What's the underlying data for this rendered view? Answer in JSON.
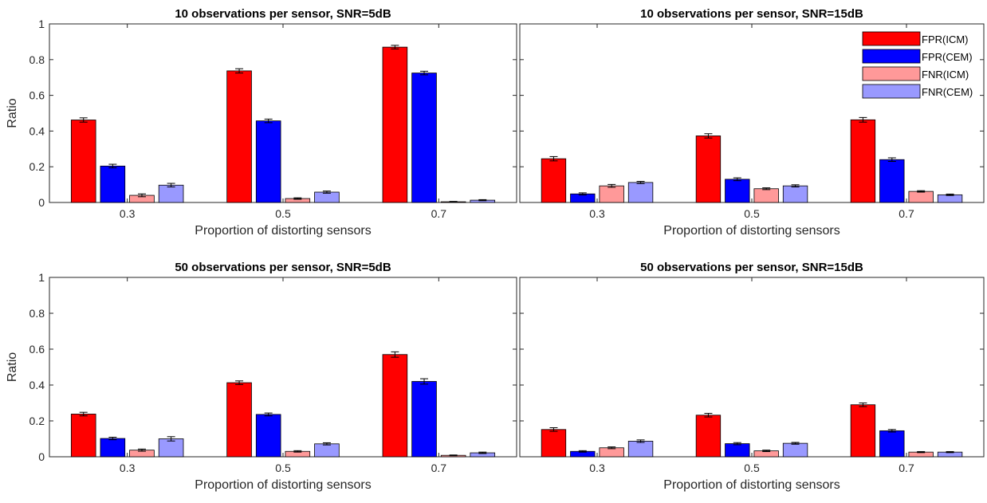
{
  "figure": {
    "colors": {
      "FPR(ICM)": "#ff0000",
      "FPR(CEM)": "#0000ff",
      "FNR(ICM)": "#ff9999",
      "FNR(CEM)": "#9999ff"
    }
  },
  "chart_data": [
    {
      "type": "bar",
      "title": "10 observations per sensor, SNR=5dB",
      "xlabel": "Proportion of distorting sensors",
      "ylabel": "Ratio",
      "ylim": [
        0,
        1
      ],
      "yticks": [
        "0",
        "0.2",
        "0.4",
        "0.6",
        "0.8",
        "1"
      ],
      "categories": [
        "0.3",
        "0.5",
        "0.7"
      ],
      "series": [
        {
          "name": "FPR(ICM)",
          "values": [
            0.462,
            0.737,
            0.87
          ],
          "errors": [
            0.012,
            0.012,
            0.01
          ]
        },
        {
          "name": "FPR(CEM)",
          "values": [
            0.204,
            0.457,
            0.725
          ],
          "errors": [
            0.01,
            0.01,
            0.01
          ]
        },
        {
          "name": "FNR(ICM)",
          "values": [
            0.04,
            0.022,
            0.004
          ],
          "errors": [
            0.008,
            0.004,
            0.002
          ]
        },
        {
          "name": "FNR(CEM)",
          "values": [
            0.097,
            0.058,
            0.013
          ],
          "errors": [
            0.01,
            0.006,
            0.003
          ]
        }
      ],
      "legend": false
    },
    {
      "type": "bar",
      "title": "10 observations per sensor, SNR=15dB",
      "xlabel": "Proportion of distorting sensors",
      "ylabel": "",
      "ylim": [
        0,
        1
      ],
      "yticks": [],
      "categories": [
        "0.3",
        "0.5",
        "0.7"
      ],
      "series": [
        {
          "name": "FPR(ICM)",
          "values": [
            0.245,
            0.373,
            0.463
          ],
          "errors": [
            0.012,
            0.012,
            0.013
          ]
        },
        {
          "name": "FPR(CEM)",
          "values": [
            0.048,
            0.13,
            0.24
          ],
          "errors": [
            0.006,
            0.008,
            0.01
          ]
        },
        {
          "name": "FNR(ICM)",
          "values": [
            0.093,
            0.077,
            0.062
          ],
          "errors": [
            0.008,
            0.005,
            0.004
          ]
        },
        {
          "name": "FNR(CEM)",
          "values": [
            0.112,
            0.093,
            0.043
          ],
          "errors": [
            0.006,
            0.006,
            0.004
          ]
        }
      ],
      "legend": true,
      "legend_position": "top-right"
    },
    {
      "type": "bar",
      "title": "50 observations per sensor, SNR=5dB",
      "xlabel": "Proportion of distorting sensors",
      "ylabel": "Ratio",
      "ylim": [
        0,
        1
      ],
      "yticks": [
        "0",
        "0.2",
        "0.4",
        "0.6",
        "0.8",
        "1"
      ],
      "categories": [
        "0.3",
        "0.5",
        "0.7"
      ],
      "series": [
        {
          "name": "FPR(ICM)",
          "values": [
            0.238,
            0.413,
            0.57
          ],
          "errors": [
            0.01,
            0.01,
            0.015
          ]
        },
        {
          "name": "FPR(CEM)",
          "values": [
            0.102,
            0.236,
            0.42
          ],
          "errors": [
            0.007,
            0.008,
            0.015
          ]
        },
        {
          "name": "FNR(ICM)",
          "values": [
            0.037,
            0.03,
            0.008
          ],
          "errors": [
            0.006,
            0.004,
            0.002
          ]
        },
        {
          "name": "FNR(CEM)",
          "values": [
            0.1,
            0.072,
            0.022
          ],
          "errors": [
            0.012,
            0.006,
            0.004
          ]
        }
      ],
      "legend": false
    },
    {
      "type": "bar",
      "title": "50 observations per sensor, SNR=15dB",
      "xlabel": "Proportion of distorting sensors",
      "ylabel": "",
      "ylim": [
        0,
        1
      ],
      "yticks": [],
      "categories": [
        "0.3",
        "0.5",
        "0.7"
      ],
      "series": [
        {
          "name": "FPR(ICM)",
          "values": [
            0.152,
            0.232,
            0.29
          ],
          "errors": [
            0.01,
            0.01,
            0.01
          ]
        },
        {
          "name": "FPR(CEM)",
          "values": [
            0.03,
            0.073,
            0.145
          ],
          "errors": [
            0.004,
            0.006,
            0.007
          ]
        },
        {
          "name": "FNR(ICM)",
          "values": [
            0.05,
            0.033,
            0.026
          ],
          "errors": [
            0.005,
            0.004,
            0.003
          ]
        },
        {
          "name": "FNR(CEM)",
          "values": [
            0.087,
            0.075,
            0.026
          ],
          "errors": [
            0.007,
            0.005,
            0.003
          ]
        }
      ],
      "legend": false
    }
  ]
}
